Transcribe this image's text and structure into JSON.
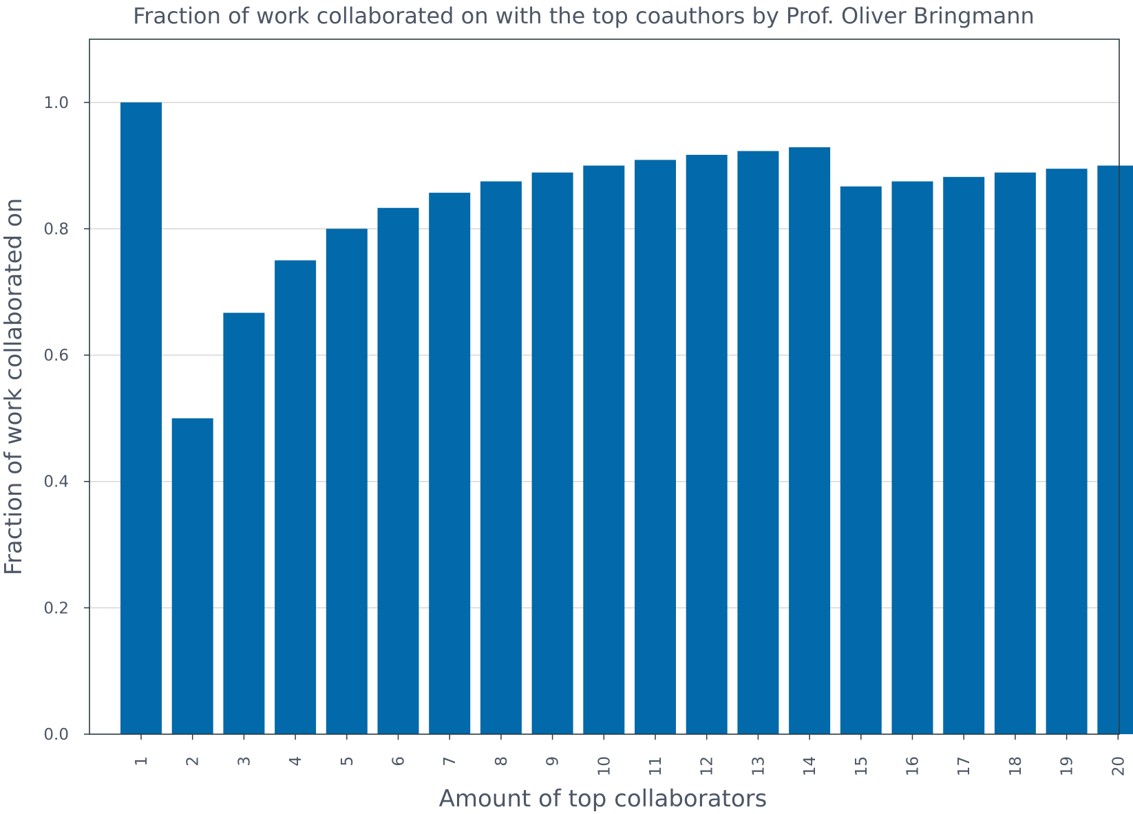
{
  "chart_data": {
    "type": "bar",
    "title": "Fraction of work collaborated on with the top coauthors by Prof. Oliver Bringmann",
    "xlabel": "Amount of top collaborators",
    "ylabel": "Fraction of work collaborated on",
    "categories": [
      "1",
      "2",
      "3",
      "4",
      "5",
      "6",
      "7",
      "8",
      "9",
      "10",
      "11",
      "12",
      "13",
      "14",
      "15",
      "16",
      "17",
      "18",
      "19",
      "20"
    ],
    "values": [
      1.0,
      0.5,
      0.667,
      0.75,
      0.8,
      0.833,
      0.857,
      0.875,
      0.889,
      0.9,
      0.909,
      0.917,
      0.923,
      0.929,
      0.867,
      0.875,
      0.882,
      0.889,
      0.895,
      0.9
    ],
    "ylim": [
      0,
      1.1
    ],
    "yticks": [
      "0.0",
      "0.2",
      "0.4",
      "0.6",
      "0.8",
      "1.0"
    ],
    "grid": "horizontal",
    "bar_color": "#0269aa"
  }
}
